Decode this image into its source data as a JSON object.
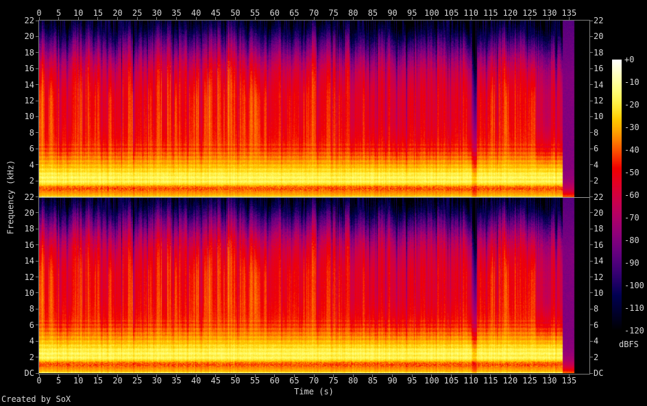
{
  "meta": {
    "credit": "Created by SoX",
    "background_color": "#000000",
    "text_color": "#d6d6d6",
    "axis_color": "#7e7e7e"
  },
  "axes": {
    "time": {
      "label": "Time (s)",
      "ticks": [
        0,
        5,
        10,
        15,
        20,
        25,
        30,
        35,
        40,
        45,
        50,
        55,
        60,
        65,
        70,
        75,
        80,
        85,
        90,
        95,
        100,
        105,
        110,
        115,
        120,
        125,
        130,
        135
      ]
    },
    "freq": {
      "label": "Frequency (kHz)",
      "channel1_ticks": [
        "22",
        "20",
        "18",
        "16",
        "14",
        "12",
        "10",
        "8",
        "6",
        "4",
        "2"
      ],
      "channel2_ticks": [
        "22",
        "20",
        "18",
        "16",
        "14",
        "12",
        "10",
        "8",
        "6",
        "4",
        "2",
        "DC"
      ]
    },
    "colorbar": {
      "label": "dBFS",
      "ticks": [
        "+0",
        "-10",
        "-20",
        "-30",
        "-40",
        "-50",
        "-60",
        "-70",
        "-80",
        "-90",
        "-100",
        "-110",
        "-120"
      ]
    }
  },
  "chart_data": {
    "type": "heatmap",
    "subtype": "audio-spectrogram",
    "tool": "SoX",
    "channels": 2,
    "xlabel": "Time (s)",
    "ylabel": "Frequency (kHz)",
    "x_range_s": [
      0,
      140
    ],
    "y_range_khz": [
      0,
      22
    ],
    "time_tick_step_s": 5,
    "freq_tick_step_khz": 2,
    "colorbar_label": "dBFS",
    "colorbar_range_db": [
      -120,
      0
    ],
    "palette": "sox-spectrum black-navy-purple-red-orange-yellow-white",
    "audio_end_s": 133.3,
    "reverb_tail_end_s": 136.3,
    "tail_peak_db": -38,
    "tail_body_db": -80,
    "freq_profile_db": [
      [
        0,
        -13
      ],
      [
        0.12,
        -28
      ],
      [
        0.4,
        -32
      ],
      [
        0.7,
        -36
      ],
      [
        1.0,
        -41
      ],
      [
        1.3,
        -36
      ],
      [
        1.5,
        -25
      ],
      [
        1.8,
        -18
      ],
      [
        2.6,
        -17
      ],
      [
        3.2,
        -22
      ],
      [
        4.0,
        -29
      ],
      [
        5.0,
        -36
      ],
      [
        6.0,
        -42
      ],
      [
        7.5,
        -45
      ],
      [
        10,
        -47
      ],
      [
        12.5,
        -48
      ],
      [
        14,
        -51
      ],
      [
        15.5,
        -56
      ],
      [
        16.5,
        -62
      ],
      [
        17.5,
        -70
      ],
      [
        18.5,
        -80
      ],
      [
        19.5,
        -90
      ],
      [
        20.3,
        -99
      ],
      [
        21.0,
        -107
      ],
      [
        21.6,
        -113
      ],
      [
        22,
        -118
      ]
    ],
    "sections_t0_t1_boost_db": [
      [
        0,
        27.5,
        0
      ],
      [
        27.5,
        47,
        1
      ],
      [
        47,
        56,
        3
      ],
      [
        56,
        79,
        0
      ],
      [
        79,
        110.3,
        -7
      ],
      [
        112,
        126.3,
        1
      ],
      [
        126.3,
        133.3,
        -13
      ]
    ],
    "silence_notches_s": [
      2.2,
      5.3,
      7.1,
      9.4,
      13.1,
      14.6,
      17.2,
      21.0,
      24.1,
      27.4,
      30.8,
      34.1,
      37.9,
      41.2,
      44.2,
      47.3,
      50.6,
      53.1,
      55.6,
      58.2,
      61.7,
      64.3,
      67.8,
      71.2,
      74.3,
      77.6,
      80.2,
      83.1,
      85.6,
      88.2,
      91.1,
      93.6,
      96.2,
      98.7,
      101.2,
      103.6,
      105.7,
      107.7,
      114.1,
      116.6,
      119.2,
      122.1,
      124.3,
      126.8,
      130.1
    ],
    "main_gap": {
      "t_s": 110.9,
      "width_s": 1.2,
      "depth_db": 58
    },
    "notch_width_s": 0.3
  }
}
